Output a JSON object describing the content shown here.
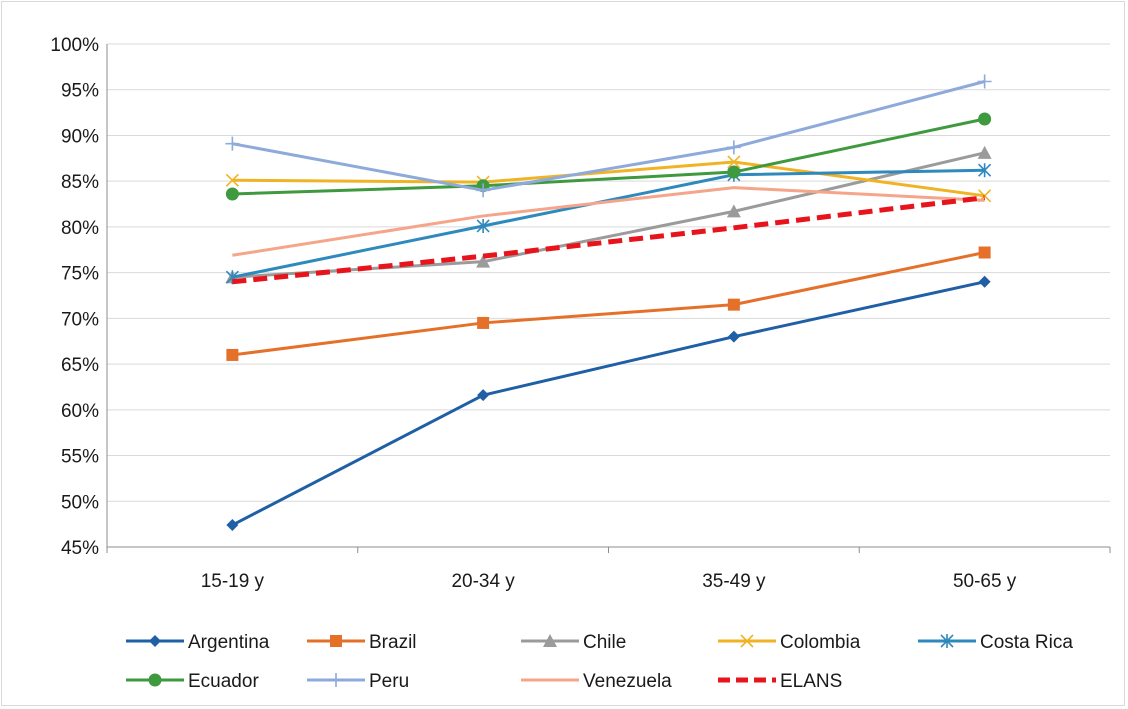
{
  "chart_data": {
    "type": "line",
    "title": "",
    "xlabel": "",
    "ylabel": "",
    "categories": [
      "15-19 y",
      "20-34 y",
      "35-49 y",
      "50-65 y"
    ],
    "ylim": [
      0.45,
      1.0
    ],
    "y_ticks": [
      0.45,
      0.5,
      0.55,
      0.6,
      0.65,
      0.7,
      0.75,
      0.8,
      0.85,
      0.9,
      0.95,
      1.0
    ],
    "y_tick_labels": [
      "45%",
      "50%",
      "55%",
      "60%",
      "65%",
      "70%",
      "75%",
      "80%",
      "85%",
      "90%",
      "95%",
      "100%"
    ],
    "grid": true,
    "legend_position": "bottom",
    "series": [
      {
        "name": "Argentina",
        "values": [
          0.474,
          0.616,
          0.68,
          0.74
        ],
        "color": "#1f5fa6",
        "marker": "diamond",
        "dashed": false
      },
      {
        "name": "Brazil",
        "values": [
          0.66,
          0.695,
          0.715,
          0.772
        ],
        "color": "#e5702a",
        "marker": "square",
        "dashed": false
      },
      {
        "name": "Chile",
        "values": [
          0.745,
          0.762,
          0.817,
          0.881
        ],
        "color": "#9b9b9b",
        "marker": "triangle",
        "dashed": false
      },
      {
        "name": "Colombia",
        "values": [
          0.851,
          0.849,
          0.871,
          0.834
        ],
        "color": "#f0b323",
        "marker": "x",
        "dashed": false
      },
      {
        "name": "Costa Rica",
        "values": [
          0.745,
          0.801,
          0.857,
          0.862
        ],
        "color": "#2e89bd",
        "marker": "star",
        "dashed": false
      },
      {
        "name": "Ecuador",
        "values": [
          0.836,
          0.845,
          0.86,
          0.918
        ],
        "color": "#3f9a3f",
        "marker": "circle",
        "dashed": false
      },
      {
        "name": "Peru",
        "values": [
          0.891,
          0.84,
          0.887,
          0.959
        ],
        "color": "#8eaadb",
        "marker": "plus",
        "dashed": false
      },
      {
        "name": "Venezuela",
        "values": [
          0.769,
          0.812,
          0.843,
          0.829
        ],
        "color": "#f4a58a",
        "marker": "none",
        "dashed": false
      },
      {
        "name": "ELANS",
        "values": [
          0.74,
          0.768,
          0.799,
          0.832
        ],
        "color": "#e8141c",
        "marker": "none",
        "dashed": true
      }
    ]
  }
}
